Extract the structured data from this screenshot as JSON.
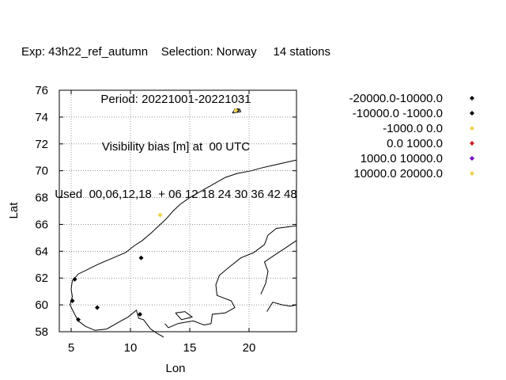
{
  "title_lines": [
    "Exp: 43h22_ref_autumn    Selection: Norway     14 stations",
    "Period: 20221001-20221031",
    "Visibility bias [m] at  00 UTC",
    "Used  00,06,12,18  + 06 12 18 24 30 36 42 48"
  ],
  "chart_data": {
    "type": "scatter",
    "title": "Exp: 43h22_ref_autumn    Selection: Norway     14 stations",
    "xlabel": "Lon",
    "ylabel": "Lat",
    "xlim": [
      4,
      24
    ],
    "ylim": [
      58,
      76
    ],
    "xticks": [
      5,
      10,
      15,
      20
    ],
    "yticks": [
      58,
      60,
      62,
      64,
      66,
      68,
      70,
      72,
      74,
      76
    ],
    "grid": true,
    "legend_position": "right",
    "series": [
      {
        "name": "-20000.0-10000.0",
        "color": "#000000",
        "points": []
      },
      {
        "name": "-10000.0 -1000.0",
        "color": "#000000",
        "points": [
          {
            "x": 7.2,
            "y": 59.8
          },
          {
            "x": 5.6,
            "y": 58.9
          },
          {
            "x": 5.1,
            "y": 60.3
          },
          {
            "x": 5.3,
            "y": 61.9
          },
          {
            "x": 10.9,
            "y": 63.5
          },
          {
            "x": 10.8,
            "y": 59.3
          },
          {
            "x": 19.0,
            "y": 74.5
          }
        ]
      },
      {
        "name": "-1000.0 0.0",
        "color": "#f0d24a",
        "points": [
          {
            "x": 12.5,
            "y": 66.7
          },
          {
            "x": 18.9,
            "y": 74.5
          }
        ]
      },
      {
        "name": "0.0 1000.0",
        "color": "#cc2222",
        "points": []
      },
      {
        "name": "1000.0 10000.0",
        "color": "#7a00cc",
        "points": []
      },
      {
        "name": "10000.0 20000.0",
        "color": "#f0d24a",
        "points": []
      }
    ]
  }
}
